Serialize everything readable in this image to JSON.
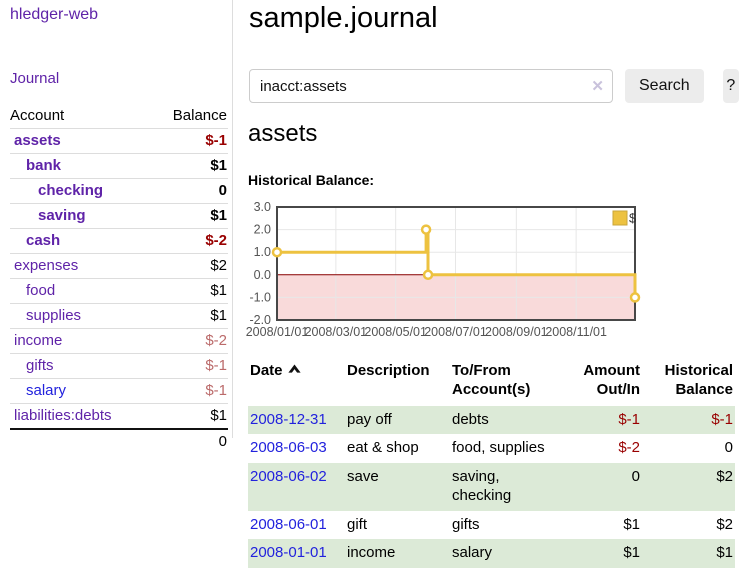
{
  "colors": {
    "accent_purple": "#5f23a8",
    "link_blue": "#2222dd",
    "negative_strong": "#990000",
    "negative_muted": "#bb6a6a",
    "row_green": "#dcead7",
    "chart_line": "#edc240",
    "chart_negative_fill": "#f9dada",
    "chart_zero_line": "#8b0000",
    "chart_border": "#474747"
  },
  "sidebar": {
    "brand": "hledger-web",
    "nav_journal": "Journal",
    "accounts_table": {
      "headers": {
        "account": "Account",
        "balance": "Balance"
      },
      "rows": [
        {
          "name": "assets",
          "balance": "$-1"
        },
        {
          "name": "bank",
          "balance": "$1"
        },
        {
          "name": "checking",
          "balance": "0"
        },
        {
          "name": "saving",
          "balance": "$1"
        },
        {
          "name": "cash",
          "balance": "$-2"
        },
        {
          "name": "expenses",
          "balance": "$2"
        },
        {
          "name": "food",
          "balance": "$1"
        },
        {
          "name": "supplies",
          "balance": "$1"
        },
        {
          "name": "income",
          "balance": "$-2"
        },
        {
          "name": "gifts",
          "balance": "$-1"
        },
        {
          "name": "salary",
          "balance": "$-1"
        },
        {
          "name": "liabilities:debts",
          "balance": "$1"
        }
      ],
      "total": "0"
    }
  },
  "main": {
    "title": "sample.journal",
    "search": {
      "value": "inacct:assets",
      "clear_icon": "✕",
      "search_button": "Search",
      "help_button": "?"
    },
    "account_heading": "assets",
    "chart_heading": "Historical Balance:"
  },
  "chart_data": {
    "type": "line",
    "step": true,
    "title": "Historical Balance",
    "legend": {
      "label": "$",
      "position": "top-right"
    },
    "x_range": [
      "2008-01-01",
      "2008-12-31"
    ],
    "ylim": [
      -2,
      3
    ],
    "grid": true,
    "series": [
      {
        "name": "$",
        "color": "#edc240",
        "points": [
          [
            "2008-01-01",
            1
          ],
          [
            "2008-06-01",
            2
          ],
          [
            "2008-06-03",
            0
          ],
          [
            "2008-12-31",
            -1
          ]
        ]
      }
    ],
    "x_ticks": [
      {
        "date": "2008-01-01",
        "label": "2008/01/01"
      },
      {
        "date": "2008-03-01",
        "label": "2008/03/01"
      },
      {
        "date": "2008-05-01",
        "label": "2008/05/01"
      },
      {
        "date": "2008-07-01",
        "label": "2008/07/01"
      },
      {
        "date": "2008-09-01",
        "label": "2008/09/01"
      },
      {
        "date": "2008-11-01",
        "label": "2008/11/01"
      }
    ],
    "y_ticks": [
      {
        "value": 3,
        "label": "3.0"
      },
      {
        "value": 2,
        "label": "2.0"
      },
      {
        "value": 1,
        "label": "1.0"
      },
      {
        "value": 0,
        "label": "0.0"
      },
      {
        "value": -1,
        "label": "-1.0"
      },
      {
        "value": -2,
        "label": "-2.0"
      }
    ],
    "negative_region": {
      "from": 0,
      "to": -2,
      "color": "#f9dada"
    },
    "zero_line_color": "#8b0000"
  },
  "table": {
    "headers": {
      "date": "Date",
      "description": "Description",
      "accounts": "To/From Account(s)",
      "amount": "Amount Out/In",
      "balance": "Historical Balance"
    },
    "rows": [
      {
        "date": "2008-12-31",
        "description": "pay off",
        "accounts": "debts",
        "amount": "$-1",
        "balance": "$-1"
      },
      {
        "date": "2008-06-03",
        "description": "eat & shop",
        "accounts": "food, supplies",
        "amount": "$-2",
        "balance": "0"
      },
      {
        "date": "2008-06-02",
        "description": "save",
        "accounts": "saving, checking",
        "amount": "0",
        "balance": "$2"
      },
      {
        "date": "2008-06-01",
        "description": "gift",
        "accounts": "gifts",
        "amount": "$1",
        "balance": "$2"
      },
      {
        "date": "2008-01-01",
        "description": "income",
        "accounts": "salary",
        "amount": "$1",
        "balance": "$1"
      }
    ]
  }
}
